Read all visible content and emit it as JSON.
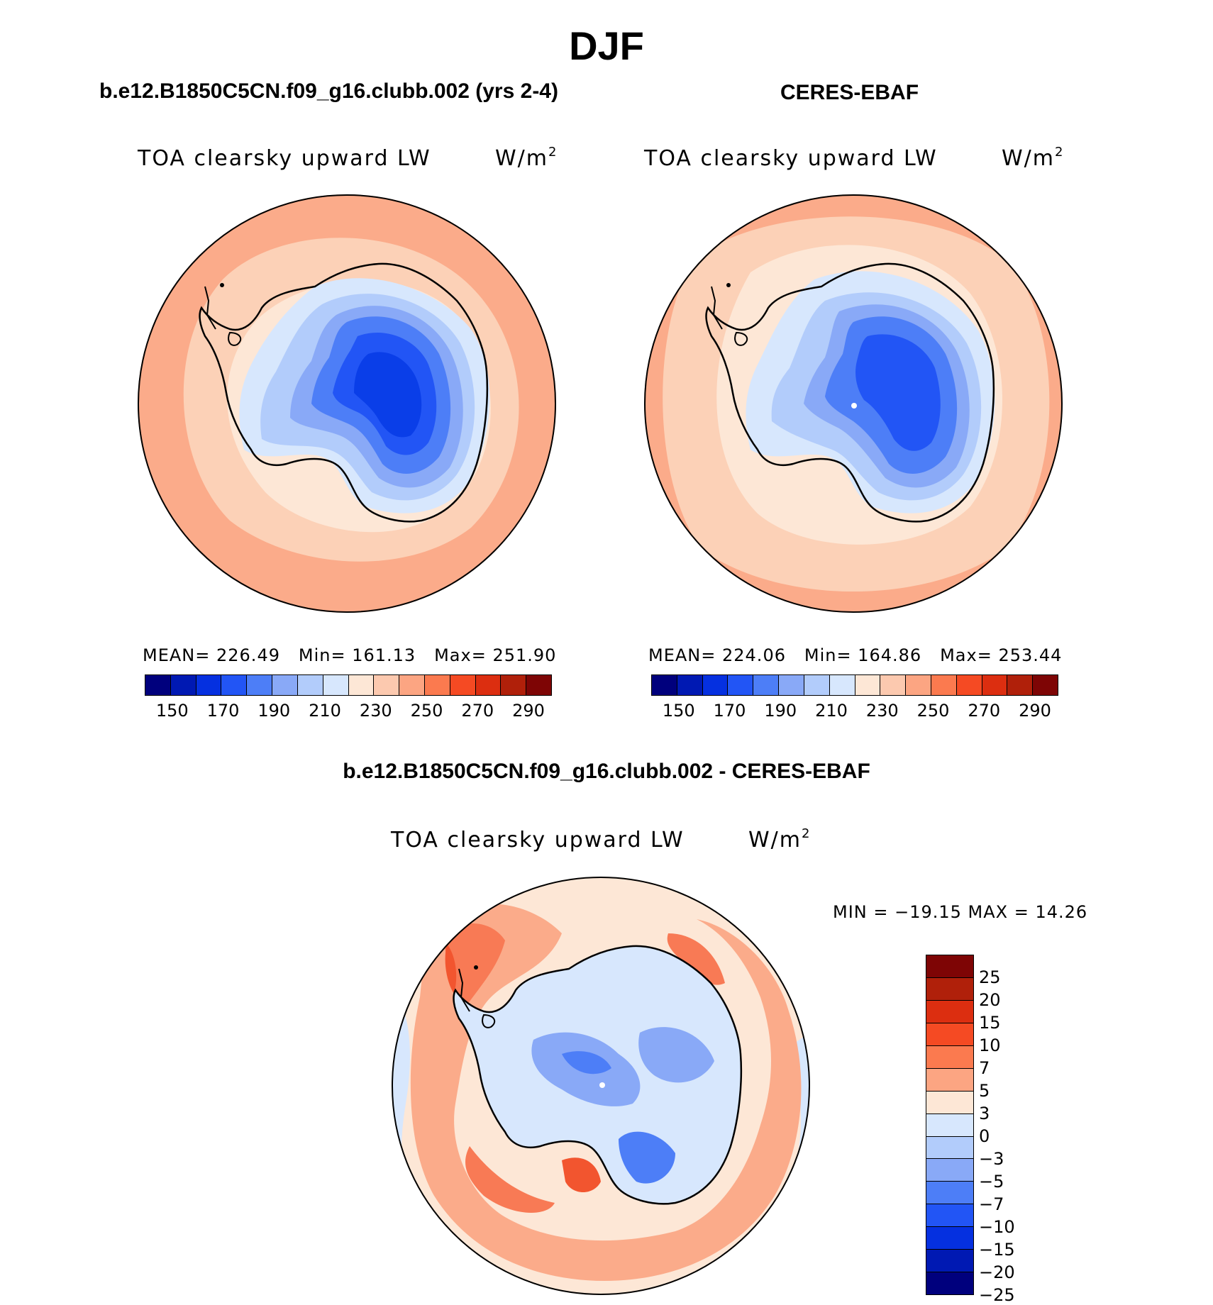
{
  "title": "DJF",
  "panels": {
    "model": {
      "title": "b.e12.B1850C5CN.f09_g16.clubb.002 (yrs 2-4)",
      "variable": "TOA clearsky upward LW",
      "units": "W/m",
      "units_exp": "2",
      "mean_label": "MEAN=",
      "mean_value": "226.49",
      "min_label": "Min=",
      "min_value": "161.13",
      "max_label": "Max=",
      "max_value": "251.90"
    },
    "obs": {
      "title": "CERES-EBAF",
      "variable": "TOA clearsky upward LW",
      "units": "W/m",
      "units_exp": "2",
      "mean_label": "MEAN=",
      "mean_value": "224.06",
      "min_label": "Min=",
      "min_value": "164.86",
      "max_label": "Max=",
      "max_value": "253.44"
    },
    "diff": {
      "title": "b.e12.B1850C5CN.f09_g16.clubb.002 - CERES-EBAF",
      "variable": "TOA clearsky upward LW",
      "units": "W/m",
      "units_exp": "2",
      "minmax_text": "MIN = −19.15 MAX =   14.26"
    }
  },
  "colorbar_abs": {
    "colors": [
      "#00007d",
      "#0019b3",
      "#0530e0",
      "#2255f5",
      "#4d7ef7",
      "#89a9f7",
      "#b2ccfb",
      "#d7e7fd",
      "#fde7d6",
      "#fcc9af",
      "#fca582",
      "#fb7a4f",
      "#f54a23",
      "#dc2e10",
      "#b0200a",
      "#7e0505"
    ],
    "tick_labels": [
      "150",
      "170",
      "190",
      "210",
      "230",
      "250",
      "270",
      "290"
    ]
  },
  "colorbar_diff": {
    "colors": [
      "#7e0505",
      "#b0200a",
      "#dc2e10",
      "#f54a23",
      "#fb7a4f",
      "#fca582",
      "#fde7d6",
      "#d7e7fd",
      "#b2ccfb",
      "#89a9f7",
      "#4d7ef7",
      "#2255f5",
      "#0530e0",
      "#0019b3",
      "#00007d"
    ],
    "tick_labels": [
      "25",
      "20",
      "15",
      "10",
      "7",
      "5",
      "3",
      "0",
      "−3",
      "−5",
      "−7",
      "−10",
      "−15",
      "−20",
      "−25"
    ]
  },
  "map_colors": {
    "outer_warm": "#fbab8a",
    "ring_light": "#fcd1b7",
    "ring_pale": "#fde7d6",
    "ice_pale": "#d7e7fd",
    "ice_light": "#b2ccfb",
    "ice_mid": "#89a9f7",
    "ice_blue": "#4d7ef7",
    "ice_deep": "#2255f5",
    "ice_core": "#0a3ee8",
    "diff_red": "#f87a55",
    "diff_strong": "#f2552f",
    "coast": "#000000"
  }
}
